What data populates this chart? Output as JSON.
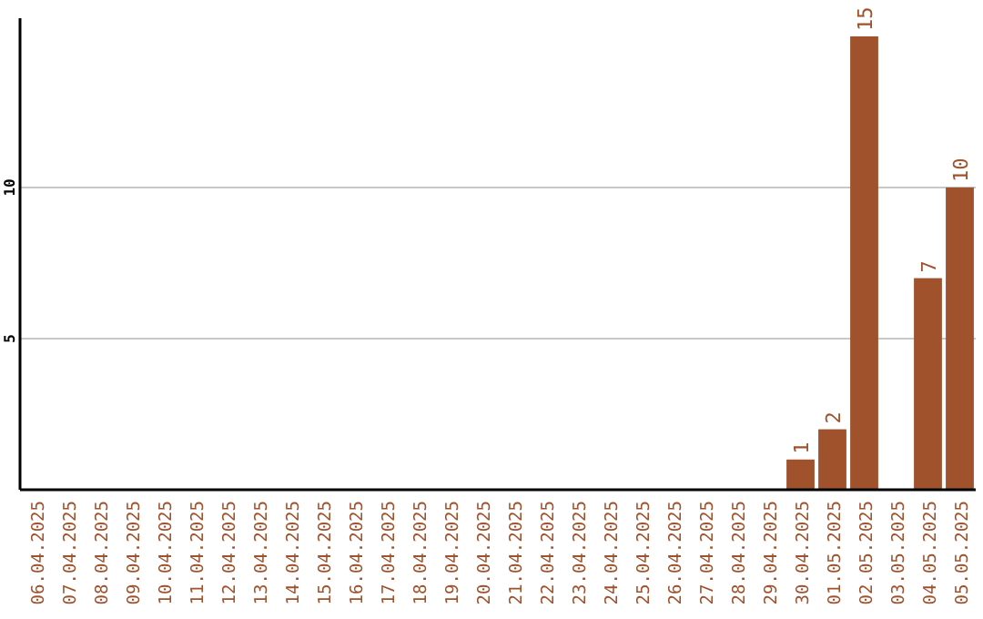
{
  "chart_data": {
    "type": "bar",
    "categories": [
      "06.04.2025",
      "07.04.2025",
      "08.04.2025",
      "09.04.2025",
      "10.04.2025",
      "11.04.2025",
      "12.04.2025",
      "13.04.2025",
      "14.04.2025",
      "15.04.2025",
      "16.04.2025",
      "17.04.2025",
      "18.04.2025",
      "19.04.2025",
      "20.04.2025",
      "21.04.2025",
      "22.04.2025",
      "23.04.2025",
      "24.04.2025",
      "25.04.2025",
      "26.04.2025",
      "27.04.2025",
      "28.04.2025",
      "29.04.2025",
      "30.04.2025",
      "01.05.2025",
      "02.05.2025",
      "03.05.2025",
      "04.05.2025",
      "05.05.2025"
    ],
    "values": [
      0,
      0,
      0,
      0,
      0,
      0,
      0,
      0,
      0,
      0,
      0,
      0,
      0,
      0,
      0,
      0,
      0,
      0,
      0,
      0,
      0,
      0,
      0,
      0,
      1,
      2,
      15,
      0,
      7,
      10
    ],
    "value_labels": [
      null,
      null,
      null,
      null,
      null,
      null,
      null,
      null,
      null,
      null,
      null,
      null,
      null,
      null,
      null,
      null,
      null,
      null,
      null,
      null,
      null,
      null,
      null,
      null,
      "1",
      "2",
      "15",
      null,
      "7",
      "10"
    ],
    "color": "#a0522d",
    "ylim": [
      0,
      15.6
    ],
    "yticks": [
      5,
      10
    ],
    "grid": "y"
  }
}
